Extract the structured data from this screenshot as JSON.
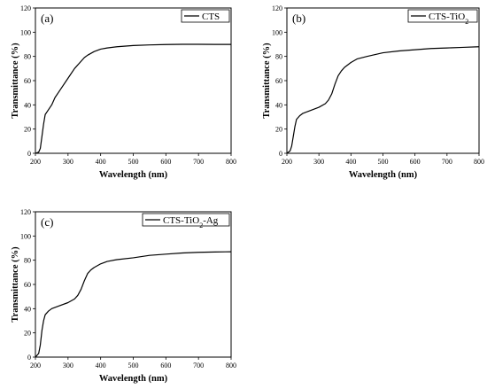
{
  "chart_data": [
    {
      "type": "line",
      "panel_label": "(a)",
      "xlabel": "Wavelength (nm)",
      "ylabel": "Transmittance (%)",
      "xlim": [
        200,
        800
      ],
      "ylim": [
        0,
        120
      ],
      "xticks": [
        200,
        300,
        400,
        500,
        600,
        700,
        800
      ],
      "yticks": [
        0,
        20,
        40,
        60,
        80,
        100,
        120
      ],
      "legend_position": "top-right",
      "series": [
        {
          "name": "CTS",
          "x": [
            200,
            210,
            215,
            220,
            225,
            230,
            240,
            250,
            260,
            270,
            280,
            300,
            320,
            340,
            350,
            360,
            380,
            400,
            420,
            450,
            500,
            550,
            600,
            650,
            700,
            750,
            800
          ],
          "y": [
            0,
            1,
            4,
            14,
            24,
            32,
            36,
            40,
            46,
            50,
            54,
            62,
            70,
            76,
            79,
            81,
            84,
            86,
            87,
            88,
            89,
            89.5,
            89.8,
            90,
            90,
            89.9,
            89.9
          ]
        }
      ]
    },
    {
      "type": "line",
      "panel_label": "(b)",
      "xlabel": "Wavelength (nm)",
      "ylabel": "Transmittance (%)",
      "xlim": [
        200,
        800
      ],
      "ylim": [
        0,
        120
      ],
      "xticks": [
        200,
        300,
        400,
        500,
        600,
        700,
        800
      ],
      "yticks": [
        0,
        20,
        40,
        60,
        80,
        100,
        120
      ],
      "legend_position": "top-right",
      "series": [
        {
          "name": "CTS-TiO2",
          "x": [
            200,
            210,
            215,
            220,
            225,
            230,
            240,
            250,
            270,
            300,
            320,
            330,
            340,
            350,
            360,
            370,
            380,
            400,
            420,
            450,
            500,
            550,
            600,
            650,
            700,
            750,
            800
          ],
          "y": [
            0,
            2,
            6,
            14,
            22,
            28,
            31,
            33,
            35,
            38,
            41,
            44,
            49,
            57,
            64,
            68,
            71,
            75,
            78,
            80,
            83,
            84.5,
            85.5,
            86.5,
            87,
            87.5,
            88
          ]
        }
      ]
    },
    {
      "type": "line",
      "panel_label": "(c)",
      "xlabel": "Wavelength (nm)",
      "ylabel": "Transmittance (%)",
      "xlim": [
        200,
        800
      ],
      "ylim": [
        0,
        120
      ],
      "xticks": [
        200,
        300,
        400,
        500,
        600,
        700,
        800
      ],
      "yticks": [
        0,
        20,
        40,
        60,
        80,
        100,
        120
      ],
      "legend_position": "top-right",
      "series": [
        {
          "name": "CTS-TiO2-Ag",
          "x": [
            200,
            210,
            215,
            220,
            225,
            230,
            240,
            250,
            270,
            300,
            320,
            330,
            340,
            350,
            360,
            370,
            380,
            400,
            420,
            450,
            500,
            550,
            600,
            650,
            700,
            750,
            800
          ],
          "y": [
            0,
            3,
            10,
            22,
            30,
            35,
            38,
            40,
            42,
            45,
            48,
            51,
            56,
            63,
            69,
            72,
            74,
            77,
            79,
            80.5,
            82,
            84,
            85,
            86,
            86.5,
            86.8,
            87
          ]
        }
      ]
    }
  ]
}
